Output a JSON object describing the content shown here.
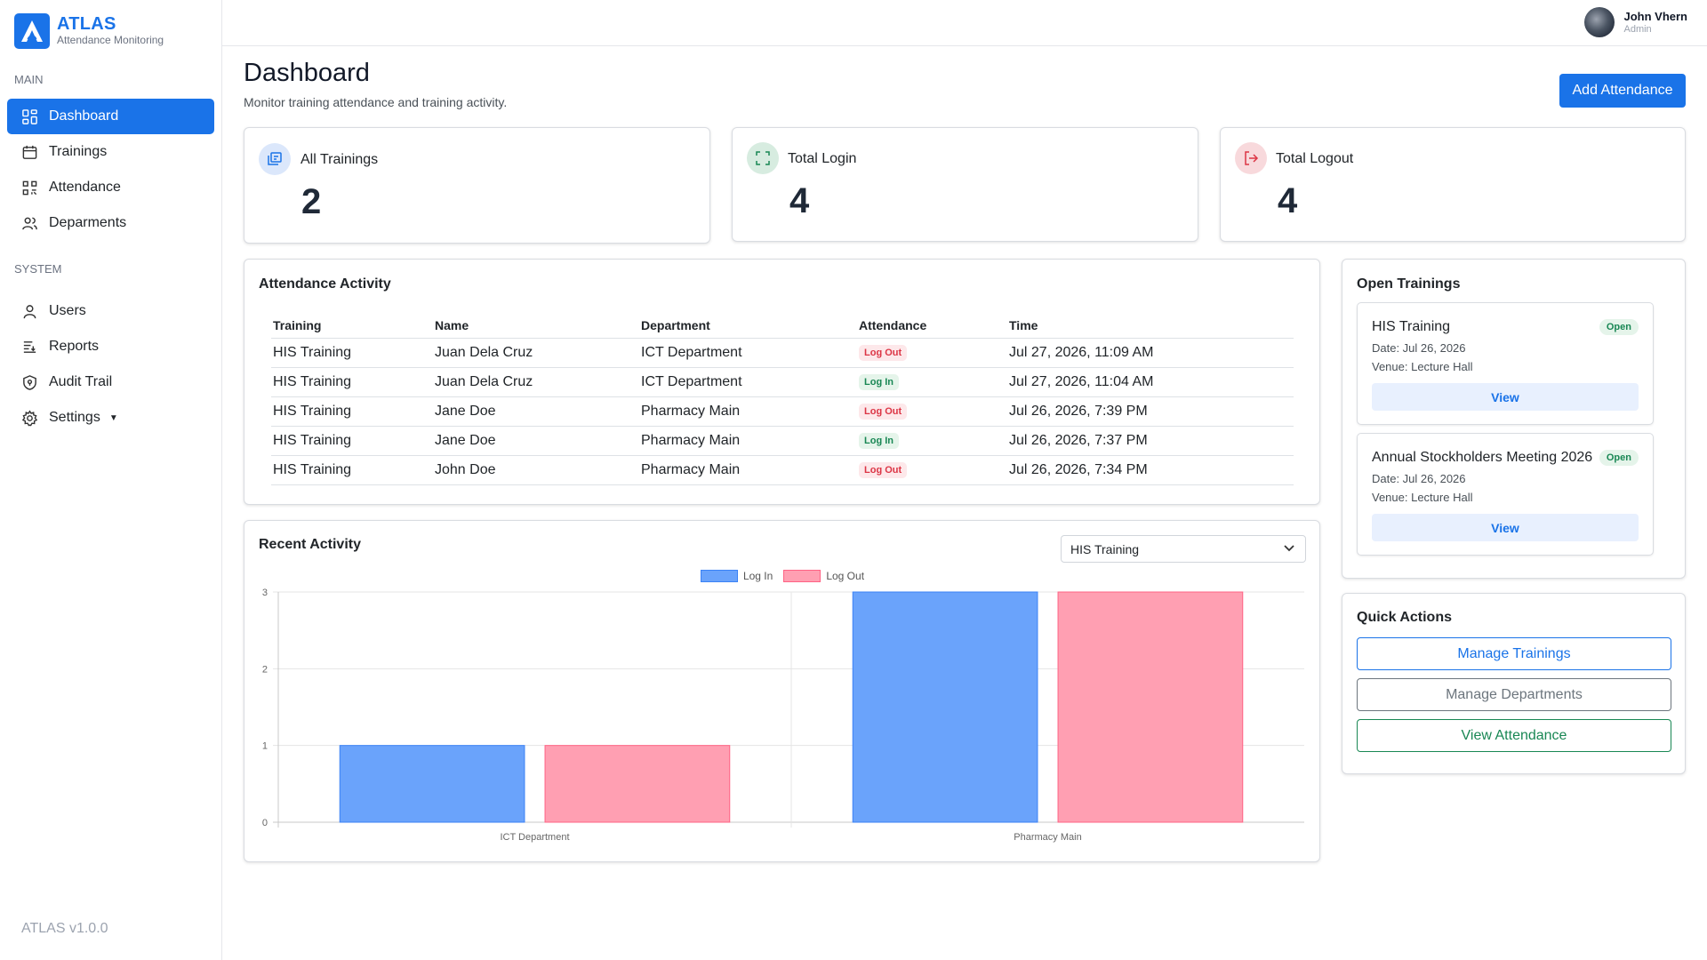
{
  "brand": {
    "name": "ATLAS",
    "subtitle": "Attendance Monitoring",
    "logo_letter": "A"
  },
  "sidebar": {
    "sections": [
      {
        "label": "MAIN",
        "items": [
          {
            "label": "Dashboard",
            "icon": "grid-icon",
            "active": true
          },
          {
            "label": "Trainings",
            "icon": "calendar-icon"
          },
          {
            "label": "Attendance",
            "icon": "qr-code-icon"
          },
          {
            "label": "Deparments",
            "icon": "users-icon"
          }
        ]
      },
      {
        "label": "SYSTEM",
        "items": [
          {
            "label": "Users",
            "icon": "user-icon"
          },
          {
            "label": "Reports",
            "icon": "list-icon"
          },
          {
            "label": "Audit Trail",
            "icon": "shield-icon"
          },
          {
            "label": "Settings",
            "icon": "gear-icon"
          }
        ]
      }
    ],
    "version": "ATLAS v1.0.0"
  },
  "user": {
    "name": "John Vhern",
    "role": "Admin"
  },
  "page": {
    "title": "Dashboard",
    "subtitle": "Monitor training attendance and training activity.",
    "add_button": "Add Attendance"
  },
  "stats": [
    {
      "label": "All Trainings",
      "value": "2",
      "color": "#1a73e8",
      "bg": "#dbe7fb",
      "icon": "training-icon"
    },
    {
      "label": "Total Login",
      "value": "4",
      "color": "#198754",
      "bg": "#d7ece0",
      "icon": "scan-icon"
    },
    {
      "label": "Total Logout",
      "value": "4",
      "color": "#dc3545",
      "bg": "#f8d9dc",
      "icon": "logout-icon"
    }
  ],
  "attendance_activity": {
    "title": "Attendance Activity",
    "columns": [
      "Training",
      "Name",
      "Department",
      "Attendance",
      "Time"
    ],
    "rows": [
      [
        "HIS Training",
        "Juan Dela Cruz",
        "ICT Department",
        "Log Out",
        "Jul 27, 2026, 11:09 AM"
      ],
      [
        "HIS Training",
        "Juan Dela Cruz",
        "ICT Department",
        "Log In",
        "Jul 27, 2026, 11:04 AM"
      ],
      [
        "HIS Training",
        "Jane Doe",
        "Pharmacy Main",
        "Log Out",
        "Jul 26, 2026, 7:39 PM"
      ],
      [
        "HIS Training",
        "Jane Doe",
        "Pharmacy Main",
        "Log In",
        "Jul 26, 2026, 7:37 PM"
      ],
      [
        "HIS Training",
        "John Doe",
        "Pharmacy Main",
        "Log Out",
        "Jul 26, 2026, 7:34 PM"
      ]
    ]
  },
  "recent_activity": {
    "title": "Recent Activity",
    "selected_training": "HIS Training"
  },
  "chart_data": {
    "type": "bar",
    "categories": [
      "ICT Department",
      "Pharmacy Main"
    ],
    "series": [
      {
        "name": "Log In",
        "values": [
          1,
          3
        ],
        "color": "#6aa3fb"
      },
      {
        "name": "Log Out",
        "values": [
          1,
          3
        ],
        "color": "#ff9fb2"
      }
    ],
    "ylim": [
      0,
      3
    ],
    "yticks": [
      0,
      1,
      2,
      3
    ],
    "legend": "top-center",
    "grid": true
  },
  "open_trainings": {
    "title": "Open Trainings",
    "items": [
      {
        "name": "HIS Training",
        "status": "Open",
        "date": "Date: Jul 26, 2026",
        "venue": "Venue: Lecture Hall",
        "action": "View"
      },
      {
        "name": "Annual Stockholders Meeting 2026",
        "status": "Open",
        "date": "Date: Jul 26, 2026",
        "venue": "Venue: Lecture Hall",
        "action": "View"
      }
    ]
  },
  "quick_actions": {
    "title": "Quick Actions",
    "buttons": [
      "Manage Trainings",
      "Manage Departments",
      "View Attendance"
    ]
  }
}
